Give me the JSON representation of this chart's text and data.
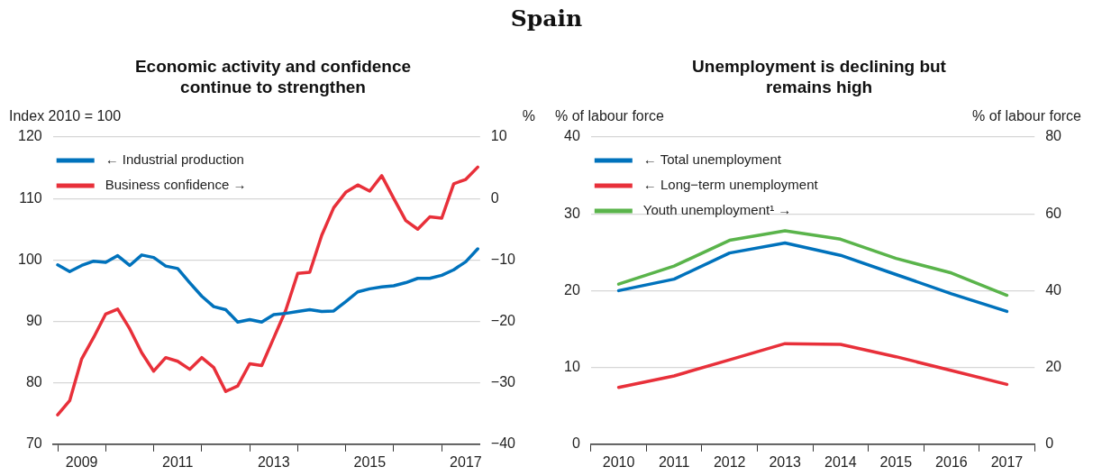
{
  "chart_data": [
    {
      "type": "line",
      "title": "Economic activity and confidence continue to strengthen",
      "annotations": [
        "Spain"
      ],
      "ylabel": "Index 2010 = 100",
      "y2label": "%",
      "x": [
        2009,
        2009.25,
        2009.5,
        2009.75,
        2010,
        2010.25,
        2010.5,
        2010.75,
        2011,
        2011.25,
        2011.5,
        2011.75,
        2012,
        2012.25,
        2012.5,
        2012.75,
        2013,
        2013.25,
        2013.5,
        2013.75,
        2014,
        2014.25,
        2014.5,
        2014.75,
        2015,
        2015.25,
        2015.5,
        2015.75,
        2016,
        2016.25,
        2016.5,
        2016.75,
        2017,
        2017.25,
        2017.5,
        2017.75
      ],
      "xlim": [
        2008.9,
        2017.8
      ],
      "xticks": [
        {
          "value": 2009,
          "label": null
        },
        {
          "value": 2009.5,
          "label": "2009"
        },
        {
          "value": 2010,
          "label": null
        },
        {
          "value": 2011,
          "label": null
        },
        {
          "value": 2011.5,
          "label": "2011"
        },
        {
          "value": 2012,
          "label": null
        },
        {
          "value": 2013,
          "label": null
        },
        {
          "value": 2013.5,
          "label": "2013"
        },
        {
          "value": 2014,
          "label": null
        },
        {
          "value": 2015,
          "label": null
        },
        {
          "value": 2015.5,
          "label": "2015"
        },
        {
          "value": 2016,
          "label": null
        },
        {
          "value": 2017,
          "label": null
        },
        {
          "value": 2017.5,
          "label": "2017"
        }
      ],
      "ylim": [
        70,
        120
      ],
      "yticks": [
        70,
        80,
        90,
        100,
        110,
        120
      ],
      "y2lim": [
        -40,
        10
      ],
      "y2ticks": [
        -40,
        -30,
        -20,
        -10,
        0,
        10
      ],
      "grid": "y",
      "legend": "top left",
      "series": [
        {
          "name": "← Industrial production",
          "color": "#0072bc",
          "values": [
            99.2,
            98.1,
            99.1,
            99.8,
            99.6,
            100.7,
            99.1,
            100.8,
            100.4,
            99.0,
            98.6,
            96.3,
            94.1,
            92.4,
            91.9,
            89.9,
            90.3,
            89.9,
            91.1,
            91.3,
            91.6,
            91.9,
            91.6,
            91.7,
            93.2,
            94.8,
            95.3,
            95.6,
            95.8,
            96.3,
            97.0,
            97.0,
            97.5,
            98.4,
            99.7,
            101.8
          ]
        },
        {
          "name": "Business confidence →",
          "color": "#e8303a",
          "axis": "y2",
          "values": [
            -35.2,
            -32.9,
            -26.1,
            -22.6,
            -18.8,
            -18.0,
            -21.2,
            -25.1,
            -28.1,
            -25.9,
            -26.5,
            -27.8,
            -25.9,
            -27.5,
            -31.4,
            -30.5,
            -26.9,
            -27.2,
            -22.7,
            -18.2,
            -12.2,
            -12.0,
            -6.0,
            -1.5,
            1.0,
            2.2,
            1.2,
            3.7,
            0.0,
            -3.6,
            -5.0,
            -3.0,
            -3.2,
            2.4,
            3.1,
            5.1
          ]
        }
      ]
    },
    {
      "type": "line",
      "title": "Unemployment is declining but remains high",
      "ylabel": "% of labour force",
      "y2label": "% of labour force",
      "categories": [
        "2010",
        "2011",
        "2012",
        "2013",
        "2014",
        "2015",
        "2016",
        "2017"
      ],
      "ylim": [
        0,
        40
      ],
      "yticks": [
        0,
        10,
        20,
        30,
        40
      ],
      "y2lim": [
        0,
        80
      ],
      "y2ticks": [
        0,
        20,
        40,
        60,
        80
      ],
      "grid": "y",
      "legend": "top left",
      "series": [
        {
          "name": "← Total unemployment",
          "color": "#0072bc",
          "values": [
            20.0,
            21.5,
            24.9,
            26.2,
            24.6,
            22.1,
            19.6,
            17.3
          ]
        },
        {
          "name": "← Long−term unemployment",
          "color": "#e8303a",
          "values": [
            7.4,
            8.9,
            11.0,
            13.1,
            13.0,
            11.4,
            9.6,
            7.8
          ]
        },
        {
          "name": "Youth unemployment¹ →",
          "color": "#5ab44b",
          "axis": "y2",
          "values": [
            41.7,
            46.4,
            53.1,
            55.6,
            53.4,
            48.4,
            44.6,
            38.8
          ]
        }
      ]
    }
  ]
}
